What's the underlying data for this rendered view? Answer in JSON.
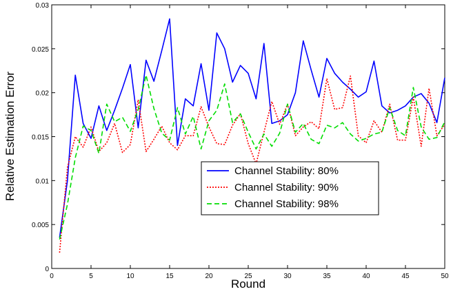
{
  "chart_data": {
    "type": "line",
    "title": "",
    "xlabel": "Round",
    "ylabel": "Relative Estimation Error",
    "xlim": [
      0,
      50
    ],
    "ylim": [
      0,
      0.03
    ],
    "xticks": [
      "0",
      "5",
      "10",
      "15",
      "20",
      "25",
      "30",
      "35",
      "40",
      "45",
      "50"
    ],
    "yticks": [
      "0",
      "0.005",
      "0.01",
      "0.015",
      "0.02",
      "0.025",
      "0.03"
    ],
    "grid": false,
    "legend_position": "lower-center-right",
    "x": [
      1,
      2,
      3,
      4,
      5,
      6,
      7,
      8,
      9,
      10,
      11,
      12,
      13,
      14,
      15,
      16,
      17,
      18,
      19,
      20,
      21,
      22,
      23,
      24,
      25,
      26,
      27,
      28,
      29,
      30,
      31,
      32,
      33,
      34,
      35,
      36,
      37,
      38,
      39,
      40,
      41,
      42,
      43,
      44,
      45,
      46,
      47,
      48,
      49,
      50
    ],
    "series": [
      {
        "name": "Channel Stability: 80%",
        "color": "#0000ff",
        "style": "solid",
        "values": [
          0.0035,
          0.01,
          0.022,
          0.0165,
          0.0148,
          0.0185,
          0.0157,
          0.018,
          0.0205,
          0.0232,
          0.016,
          0.0237,
          0.0213,
          0.0248,
          0.0284,
          0.014,
          0.0193,
          0.0185,
          0.0233,
          0.018,
          0.0268,
          0.025,
          0.0212,
          0.0231,
          0.0222,
          0.0193,
          0.0256,
          0.0165,
          0.0168,
          0.0175,
          0.02,
          0.0259,
          0.0226,
          0.0195,
          0.0239,
          0.0222,
          0.0212,
          0.0204,
          0.0195,
          0.0201,
          0.0236,
          0.0185,
          0.0177,
          0.018,
          0.0185,
          0.0195,
          0.0199,
          0.0188,
          0.0166,
          0.0217
        ]
      },
      {
        "name": "Channel Stability: 90%",
        "color": "#ff0000",
        "style": "dotted",
        "values": [
          0.0018,
          0.0115,
          0.015,
          0.0138,
          0.0161,
          0.0133,
          0.0143,
          0.0165,
          0.0132,
          0.0141,
          0.0192,
          0.0133,
          0.0147,
          0.0162,
          0.0143,
          0.0135,
          0.0151,
          0.0151,
          0.0184,
          0.0161,
          0.0142,
          0.0141,
          0.0163,
          0.0176,
          0.0142,
          0.0119,
          0.0155,
          0.019,
          0.0164,
          0.0187,
          0.0151,
          0.0161,
          0.0167,
          0.0159,
          0.0216,
          0.0181,
          0.0183,
          0.0219,
          0.0151,
          0.0143,
          0.0168,
          0.0155,
          0.0187,
          0.0146,
          0.0146,
          0.0195,
          0.0139,
          0.0205,
          0.0151,
          0.0164
        ]
      },
      {
        "name": "Channel Stability: 98%",
        "color": "#00dd00",
        "style": "dashed",
        "values": [
          0.0033,
          0.0073,
          0.0126,
          0.0162,
          0.0157,
          0.0131,
          0.0187,
          0.0167,
          0.0172,
          0.0156,
          0.0181,
          0.022,
          0.0182,
          0.0154,
          0.0146,
          0.0183,
          0.0153,
          0.0173,
          0.0136,
          0.0168,
          0.018,
          0.021,
          0.0166,
          0.0176,
          0.0155,
          0.0136,
          0.0153,
          0.0139,
          0.0154,
          0.0187,
          0.0155,
          0.0165,
          0.0147,
          0.0142,
          0.0163,
          0.016,
          0.0166,
          0.0153,
          0.0145,
          0.0148,
          0.0153,
          0.0155,
          0.0183,
          0.0157,
          0.0151,
          0.0206,
          0.0161,
          0.0147,
          0.0149,
          0.0167
        ]
      }
    ]
  }
}
